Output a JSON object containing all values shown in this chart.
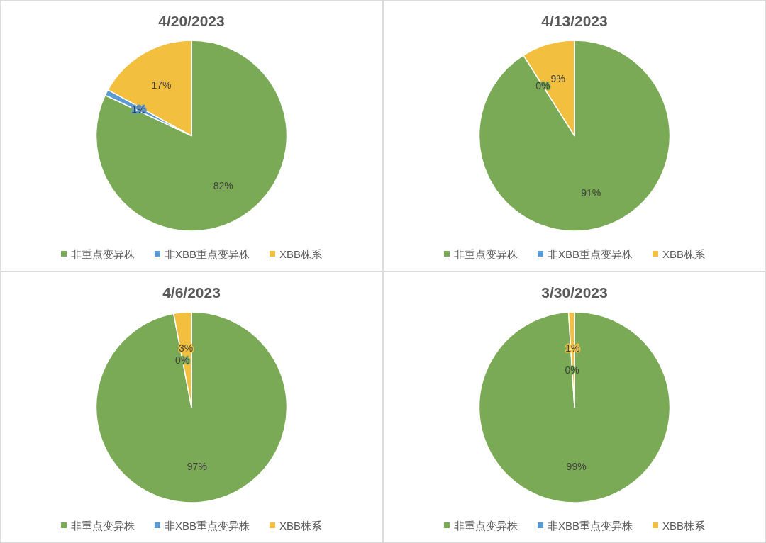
{
  "chart_data": [
    {
      "type": "pie",
      "title": "4/20/2023",
      "categories": [
        "非重点变异株",
        "非XBB重点变异株",
        "XBB株系"
      ],
      "values": [
        82,
        1,
        17
      ],
      "colors": [
        "#7aaa55",
        "#5b9bd5",
        "#f2bf3e"
      ],
      "value_labels": [
        "82%",
        "1%",
        "17%"
      ],
      "legend": "bottom"
    },
    {
      "type": "pie",
      "title": "4/13/2023",
      "categories": [
        "非重点变异株",
        "非XBB重点变异株",
        "XBB株系"
      ],
      "values": [
        91,
        0,
        9
      ],
      "colors": [
        "#7aaa55",
        "#5b9bd5",
        "#f2bf3e"
      ],
      "value_labels": [
        "91%",
        "0%",
        "9%"
      ],
      "legend": "bottom"
    },
    {
      "type": "pie",
      "title": "4/6/2023",
      "categories": [
        "非重点变异株",
        "非XBB重点变异株",
        "XBB株系"
      ],
      "values": [
        97,
        0,
        3
      ],
      "colors": [
        "#7aaa55",
        "#5b9bd5",
        "#f2bf3e"
      ],
      "value_labels": [
        "97%",
        "0%",
        "3%"
      ],
      "legend": "bottom"
    },
    {
      "type": "pie",
      "title": "3/30/2023",
      "categories": [
        "非重点变异株",
        "非XBB重点变异株",
        "XBB株系"
      ],
      "values": [
        99,
        0,
        1
      ],
      "colors": [
        "#7aaa55",
        "#5b9bd5",
        "#f2bf3e"
      ],
      "value_labels": [
        "99%",
        "0%",
        "1%"
      ],
      "legend": "bottom"
    }
  ]
}
